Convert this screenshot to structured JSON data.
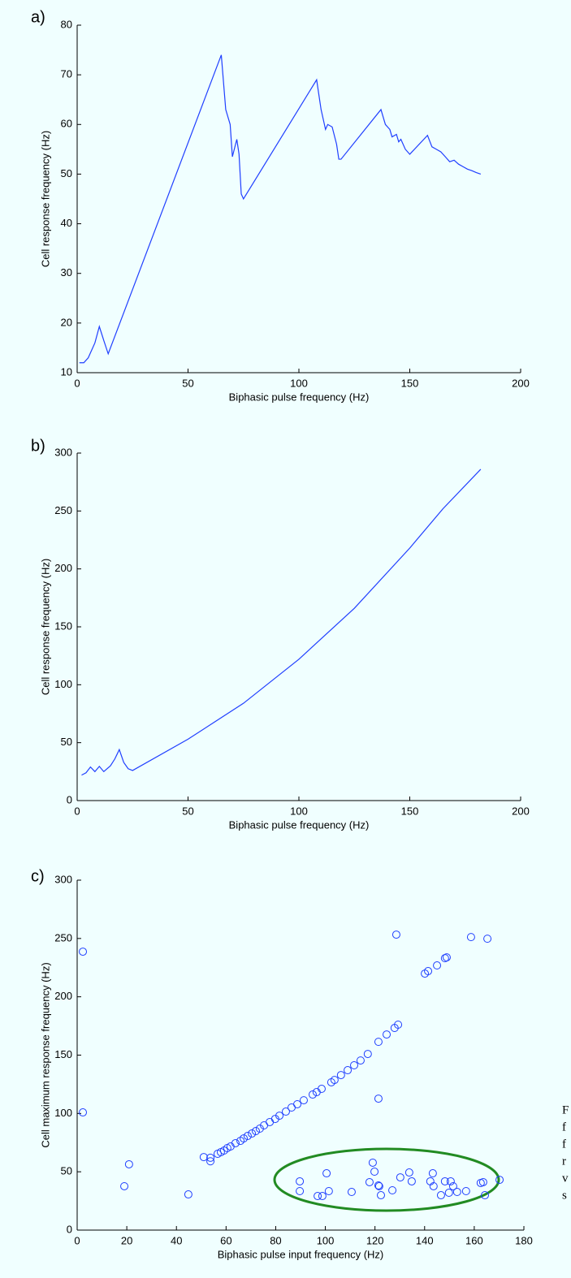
{
  "chart_data": [
    {
      "type": "line",
      "panel_label": "a)",
      "xlabel": "Biphasic pulse frequency (Hz)",
      "ylabel": "Cell response frequency (Hz)",
      "xlim": [
        0,
        200
      ],
      "xticks": [
        0,
        50,
        100,
        150,
        200
      ],
      "ylim": [
        10,
        80
      ],
      "yticks": [
        10,
        20,
        30,
        40,
        50,
        60,
        70,
        80
      ],
      "x": [
        1,
        3,
        5,
        8,
        10,
        12,
        14,
        65,
        67,
        69,
        70,
        72,
        73,
        74,
        75,
        108,
        109,
        110,
        112,
        113,
        115,
        117,
        118,
        119,
        137,
        139,
        141,
        142,
        144,
        145,
        146,
        148,
        150,
        158,
        160,
        162,
        164,
        166,
        168,
        170,
        172,
        174,
        176,
        178,
        180,
        182
      ],
      "series": [
        {
          "color": "#1f3fff",
          "values": [
            12,
            12,
            13,
            16,
            19.3,
            16.5,
            13.8,
            74,
            63,
            60,
            53.5,
            57,
            54,
            46,
            45,
            69,
            66,
            63,
            59,
            60,
            59.5,
            56,
            53,
            53,
            63,
            60,
            59,
            57.5,
            58,
            56.5,
            57,
            55,
            54,
            57.8,
            55.5,
            55,
            54.5,
            53.5,
            52.5,
            52.8,
            52,
            51.5,
            51,
            50.7,
            50.3,
            50
          ]
        }
      ]
    },
    {
      "type": "line",
      "panel_label": "b)",
      "xlabel": "Biphasic pulse frequency (Hz)",
      "ylabel": "Cell response frequency (Hz)",
      "xlim": [
        0,
        200
      ],
      "xticks": [
        0,
        50,
        100,
        150,
        200
      ],
      "ylim": [
        0,
        300
      ],
      "yticks": [
        0,
        50,
        100,
        150,
        200,
        250,
        300
      ],
      "x": [
        2,
        4,
        6,
        8,
        10,
        12,
        15,
        17,
        19,
        21,
        23,
        25,
        50,
        75,
        100,
        125,
        150,
        165,
        182
      ],
      "series": [
        {
          "color": "#1f3fff",
          "values": [
            22,
            24,
            29,
            25,
            29.5,
            25,
            30,
            36,
            44,
            33,
            27.5,
            26,
            53,
            84,
            122,
            166,
            218,
            252,
            286
          ]
        }
      ]
    },
    {
      "type": "scatter",
      "panel_label": "c)",
      "xlabel": "Biphasic pulse input frequency (Hz)",
      "ylabel": "Cell maximum response frequency (Hz)",
      "xlim": [
        0,
        180
      ],
      "xticks": [
        0,
        20,
        40,
        60,
        80,
        100,
        120,
        140,
        160,
        180
      ],
      "ylim": [
        0,
        300
      ],
      "yticks": [
        0,
        50,
        100,
        150,
        200,
        250,
        300
      ],
      "x": [
        2.3,
        2.3,
        19.0,
        20.9,
        44.8,
        51.0,
        53.7,
        53.7,
        56.6,
        57.9,
        59.2,
        60.5,
        61.8,
        63.8,
        65.8,
        67.1,
        68.7,
        70.4,
        72.0,
        73.6,
        75.3,
        77.6,
        79.8,
        81.5,
        84.1,
        86.4,
        88.7,
        91.3,
        94.9,
        96.5,
        98.5,
        102.4,
        103.7,
        106.3,
        109.0,
        111.6,
        114.2,
        117.1,
        121.4,
        124.7,
        127.9,
        129.3,
        128.6,
        140.1,
        141.4,
        145.0,
        148.2,
        148.9,
        158.7,
        165.3,
        121.4,
        89.7,
        89.7,
        96.9,
        98.8,
        100.5,
        101.4,
        110.6,
        119.1,
        117.8,
        119.8,
        121.4,
        121.7,
        122.4,
        127.0,
        130.2,
        133.8,
        134.8,
        143.3,
        142.3,
        143.6,
        146.6,
        148.2,
        150.5,
        149.8,
        151.5,
        153.1,
        156.7,
        162.6,
        163.6,
        164.3,
        170.2
      ],
      "series": [
        {
          "color": "#1f3fff",
          "values": [
            238.7,
            100.9,
            37.6,
            56.4,
            30.6,
            62.6,
            62,
            59,
            65.4,
            66.8,
            68.2,
            70.3,
            71.7,
            74.5,
            76.5,
            78.6,
            80.7,
            82.8,
            84.9,
            87.0,
            89.8,
            92.6,
            95.3,
            98.1,
            101.6,
            105.1,
            107.9,
            111.3,
            116.2,
            118.3,
            121.1,
            126.7,
            128.7,
            132.9,
            137.1,
            141.3,
            145.4,
            151.0,
            161.4,
            167.7,
            173.3,
            176.1,
            253.3,
            219.9,
            222.0,
            226.9,
            233.1,
            233.8,
            251.2,
            249.8,
            112.7,
            41.8,
            33.4,
            29.2,
            29.2,
            48.7,
            33.4,
            32.7,
            57.8,
            41.1,
            50.1,
            38.3,
            37.6,
            29.9,
            34.1,
            45.2,
            49.4,
            41.8,
            48.7,
            41.8,
            37.6,
            29.9,
            41.8,
            41.8,
            32.0,
            37.6,
            32.7,
            33.4,
            40.4,
            41.1,
            29.9,
            43.1
          ]
        }
      ]
    }
  ],
  "caption_fragments": [
    "F",
    "f",
    "f",
    "r",
    "v",
    "s"
  ]
}
